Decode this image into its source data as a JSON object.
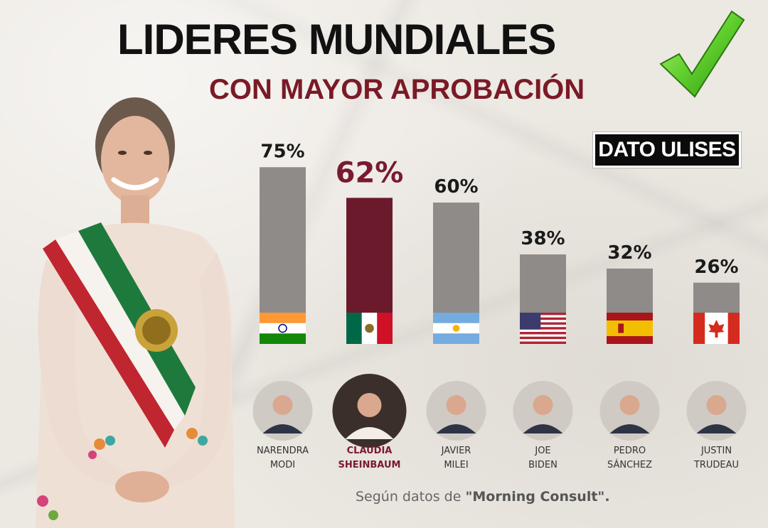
{
  "title": "LIDERES MUNDIALES",
  "subtitle": "CON MAYOR APROBACIÓN",
  "brand": "DATO ULISES",
  "source_prefix": "Según datos de ",
  "source_name": "\"Morning Consult\".",
  "colors": {
    "bar_default": "#8e8b88",
    "bar_highlight": "#6b1a2b",
    "label_highlight": "#7a1a2e",
    "title_accent": "#7a1a26"
  },
  "chart_data": {
    "type": "bar",
    "title": "LIDERES MUNDIALES CON MAYOR APROBACIÓN",
    "categories": [
      "NARENDRA MODI",
      "CLAUDIA SHEINBAUM",
      "JAVIER MILEI",
      "JOE BIDEN",
      "PEDRO SÁNCHEZ",
      "JUSTIN TRUDEAU"
    ],
    "values": [
      75,
      62,
      60,
      38,
      32,
      26
    ],
    "value_labels": [
      "75%",
      "62%",
      "60%",
      "38%",
      "32%",
      "26%"
    ],
    "name_lines": [
      [
        "NARENDRA",
        "MODI"
      ],
      [
        "CLAUDIA",
        "SHEINBAUM"
      ],
      [
        "JAVIER",
        "MILEI"
      ],
      [
        "JOE",
        "BIDEN"
      ],
      [
        "PEDRO",
        "SÁNCHEZ"
      ],
      [
        "JUSTIN",
        "TRUDEAU"
      ]
    ],
    "flags": [
      "india-flag-icon",
      "mexico-flag-icon",
      "argentina-flag-icon",
      "usa-flag-icon",
      "spain-flag-icon",
      "canada-flag-icon"
    ],
    "highlight_index": 1,
    "ylim": [
      0,
      75
    ],
    "grid": false,
    "legend": "none"
  }
}
